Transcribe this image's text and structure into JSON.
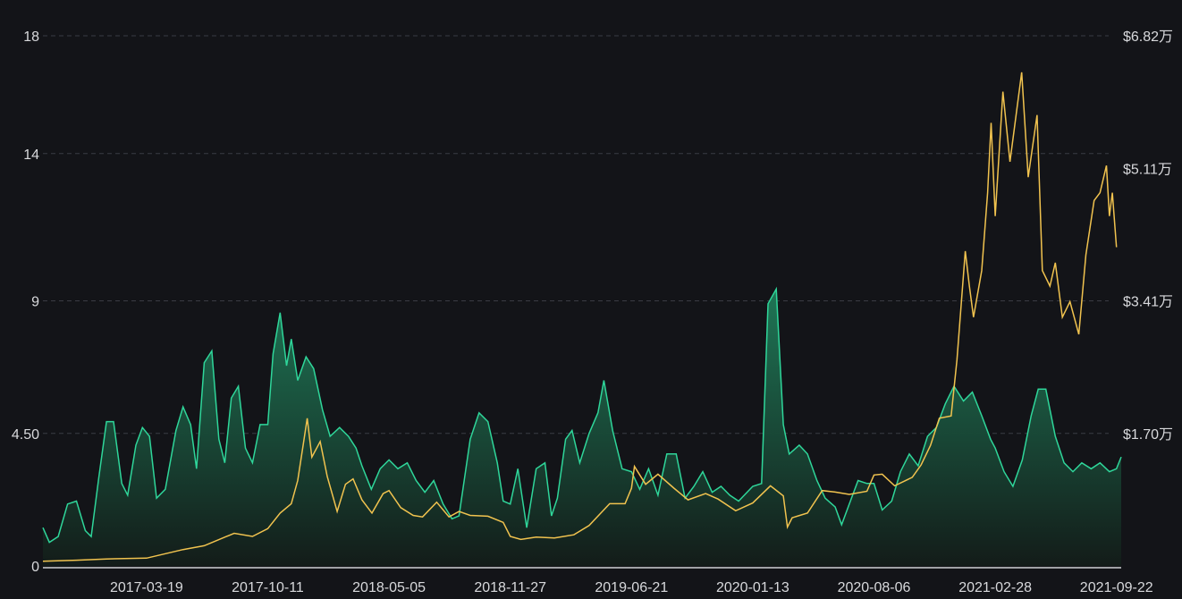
{
  "chart_data": {
    "type": "area",
    "title": "",
    "xlabel": "",
    "ylabel": "",
    "grid": true,
    "y_left": {
      "ticks": [
        0,
        4.5,
        9,
        14,
        18
      ],
      "tick_labels": [
        "0",
        "4.50",
        "9",
        "14",
        "18"
      ],
      "ylim": [
        0,
        18
      ]
    },
    "y_right": {
      "ticks": [
        17000,
        34100,
        51100,
        68200
      ],
      "tick_labels": [
        "$1.70万",
        "$3.41万",
        "$5.11万",
        "$6.82万"
      ],
      "ylim": [
        0,
        68200
      ]
    },
    "x_ticks": [
      "2017-03-19",
      "2017-10-11",
      "2018-05-05",
      "2018-11-27",
      "2019-06-21",
      "2020-01-13",
      "2020-08-06",
      "2021-02-28",
      "2021-09-22"
    ],
    "x_range": [
      "2016-09-24",
      "2021-09-30"
    ],
    "colors": {
      "area_line": "#2fd69a",
      "area_top": "#1f7a58",
      "area_bottom": "#131c19",
      "price_line": "#f1c34f",
      "background": "#131418"
    },
    "series": [
      {
        "axis": "left",
        "points": [
          [
            "2016-09-24",
            1.3
          ],
          [
            "2016-10-05",
            0.8
          ],
          [
            "2016-10-20",
            1.0
          ],
          [
            "2016-11-05",
            2.1
          ],
          [
            "2016-11-20",
            2.2
          ],
          [
            "2016-12-05",
            1.2
          ],
          [
            "2016-12-15",
            1.0
          ],
          [
            "2016-12-28",
            3.0
          ],
          [
            "2017-01-10",
            4.9
          ],
          [
            "2017-01-22",
            4.9
          ],
          [
            "2017-02-05",
            2.8
          ],
          [
            "2017-02-15",
            2.4
          ],
          [
            "2017-03-01",
            4.1
          ],
          [
            "2017-03-12",
            4.7
          ],
          [
            "2017-03-24",
            4.4
          ],
          [
            "2017-04-05",
            2.3
          ],
          [
            "2017-04-20",
            2.6
          ],
          [
            "2017-05-08",
            4.6
          ],
          [
            "2017-05-20",
            5.4
          ],
          [
            "2017-06-02",
            4.8
          ],
          [
            "2017-06-12",
            3.3
          ],
          [
            "2017-06-25",
            6.9
          ],
          [
            "2017-07-08",
            7.3
          ],
          [
            "2017-07-20",
            4.3
          ],
          [
            "2017-07-30",
            3.5
          ],
          [
            "2017-08-10",
            5.7
          ],
          [
            "2017-08-22",
            6.1
          ],
          [
            "2017-09-03",
            4.0
          ],
          [
            "2017-09-15",
            3.5
          ],
          [
            "2017-09-28",
            4.8
          ],
          [
            "2017-10-11",
            4.8
          ],
          [
            "2017-10-20",
            7.2
          ],
          [
            "2017-11-01",
            8.6
          ],
          [
            "2017-11-12",
            6.8
          ],
          [
            "2017-11-20",
            7.7
          ],
          [
            "2017-12-01",
            6.3
          ],
          [
            "2017-12-15",
            7.1
          ],
          [
            "2017-12-28",
            6.7
          ],
          [
            "2018-01-12",
            5.3
          ],
          [
            "2018-01-25",
            4.4
          ],
          [
            "2018-02-10",
            4.7
          ],
          [
            "2018-02-25",
            4.4
          ],
          [
            "2018-03-10",
            4.0
          ],
          [
            "2018-03-20",
            3.4
          ],
          [
            "2018-04-05",
            2.6
          ],
          [
            "2018-04-20",
            3.3
          ],
          [
            "2018-05-05",
            3.6
          ],
          [
            "2018-05-20",
            3.3
          ],
          [
            "2018-06-05",
            3.5
          ],
          [
            "2018-06-20",
            2.9
          ],
          [
            "2018-07-05",
            2.5
          ],
          [
            "2018-07-20",
            2.9
          ],
          [
            "2018-08-05",
            2.1
          ],
          [
            "2018-08-20",
            1.6
          ],
          [
            "2018-09-01",
            1.7
          ],
          [
            "2018-09-20",
            4.3
          ],
          [
            "2018-10-05",
            5.2
          ],
          [
            "2018-10-20",
            4.9
          ],
          [
            "2018-11-05",
            3.5
          ],
          [
            "2018-11-15",
            2.2
          ],
          [
            "2018-11-27",
            2.1
          ],
          [
            "2018-12-10",
            3.3
          ],
          [
            "2018-12-25",
            1.3
          ],
          [
            "2019-01-10",
            3.3
          ],
          [
            "2019-01-25",
            3.5
          ],
          [
            "2019-02-05",
            1.7
          ],
          [
            "2019-02-15",
            2.3
          ],
          [
            "2019-03-01",
            4.3
          ],
          [
            "2019-03-12",
            4.6
          ],
          [
            "2019-03-25",
            3.5
          ],
          [
            "2019-04-10",
            4.5
          ],
          [
            "2019-04-25",
            5.2
          ],
          [
            "2019-05-05",
            6.3
          ],
          [
            "2019-05-20",
            4.6
          ],
          [
            "2019-06-05",
            3.3
          ],
          [
            "2019-06-21",
            3.2
          ],
          [
            "2019-07-05",
            2.6
          ],
          [
            "2019-07-20",
            3.3
          ],
          [
            "2019-08-05",
            2.4
          ],
          [
            "2019-08-20",
            3.8
          ],
          [
            "2019-09-05",
            3.8
          ],
          [
            "2019-09-20",
            2.3
          ],
          [
            "2019-10-05",
            2.7
          ],
          [
            "2019-10-20",
            3.2
          ],
          [
            "2019-11-05",
            2.5
          ],
          [
            "2019-11-20",
            2.7
          ],
          [
            "2019-12-05",
            2.4
          ],
          [
            "2019-12-20",
            2.2
          ],
          [
            "2020-01-13",
            2.7
          ],
          [
            "2020-01-28",
            2.8
          ],
          [
            "2020-02-08",
            8.9
          ],
          [
            "2020-02-22",
            9.4
          ],
          [
            "2020-03-05",
            4.8
          ],
          [
            "2020-03-15",
            3.8
          ],
          [
            "2020-04-01",
            4.1
          ],
          [
            "2020-04-15",
            3.8
          ],
          [
            "2020-05-01",
            2.9
          ],
          [
            "2020-05-15",
            2.3
          ],
          [
            "2020-06-01",
            2.0
          ],
          [
            "2020-06-12",
            1.4
          ],
          [
            "2020-06-25",
            2.1
          ],
          [
            "2020-07-10",
            2.9
          ],
          [
            "2020-07-25",
            2.8
          ],
          [
            "2020-08-06",
            2.8
          ],
          [
            "2020-08-20",
            1.9
          ],
          [
            "2020-09-05",
            2.2
          ],
          [
            "2020-09-20",
            3.2
          ],
          [
            "2020-10-05",
            3.8
          ],
          [
            "2020-10-20",
            3.4
          ],
          [
            "2020-11-05",
            4.4
          ],
          [
            "2020-11-20",
            4.7
          ],
          [
            "2020-12-05",
            5.5
          ],
          [
            "2020-12-20",
            6.1
          ],
          [
            "2021-01-05",
            5.6
          ],
          [
            "2021-01-20",
            5.9
          ],
          [
            "2021-02-05",
            5.1
          ],
          [
            "2021-02-20",
            4.3
          ],
          [
            "2021-02-28",
            4.0
          ],
          [
            "2021-03-15",
            3.2
          ],
          [
            "2021-03-30",
            2.7
          ],
          [
            "2021-04-15",
            3.6
          ],
          [
            "2021-04-30",
            5.1
          ],
          [
            "2021-05-12",
            6.0
          ],
          [
            "2021-05-25",
            6.0
          ],
          [
            "2021-06-10",
            4.4
          ],
          [
            "2021-06-25",
            3.5
          ],
          [
            "2021-07-10",
            3.2
          ],
          [
            "2021-07-25",
            3.5
          ],
          [
            "2021-08-10",
            3.3
          ],
          [
            "2021-08-25",
            3.5
          ],
          [
            "2021-09-10",
            3.2
          ],
          [
            "2021-09-22",
            3.3
          ],
          [
            "2021-09-30",
            3.7
          ]
        ]
      },
      {
        "axis": "right",
        "points": [
          [
            "2016-09-24",
            600
          ],
          [
            "2016-11-20",
            740
          ],
          [
            "2017-01-10",
            900
          ],
          [
            "2017-03-19",
            1000
          ],
          [
            "2017-05-20",
            2100
          ],
          [
            "2017-06-25",
            2600
          ],
          [
            "2017-08-15",
            4200
          ],
          [
            "2017-09-15",
            3800
          ],
          [
            "2017-10-11",
            4800
          ],
          [
            "2017-11-01",
            6800
          ],
          [
            "2017-11-20",
            8000
          ],
          [
            "2017-12-01",
            11000
          ],
          [
            "2017-12-10",
            15500
          ],
          [
            "2017-12-17",
            19000
          ],
          [
            "2017-12-25",
            14000
          ],
          [
            "2018-01-08",
            16000
          ],
          [
            "2018-01-20",
            11500
          ],
          [
            "2018-02-06",
            7000
          ],
          [
            "2018-02-20",
            10500
          ],
          [
            "2018-03-05",
            11200
          ],
          [
            "2018-03-20",
            8500
          ],
          [
            "2018-04-06",
            6800
          ],
          [
            "2018-04-25",
            9300
          ],
          [
            "2018-05-05",
            9700
          ],
          [
            "2018-05-25",
            7500
          ],
          [
            "2018-06-15",
            6500
          ],
          [
            "2018-07-01",
            6300
          ],
          [
            "2018-07-25",
            8200
          ],
          [
            "2018-08-15",
            6300
          ],
          [
            "2018-09-01",
            7000
          ],
          [
            "2018-09-20",
            6500
          ],
          [
            "2018-10-20",
            6400
          ],
          [
            "2018-11-15",
            5600
          ],
          [
            "2018-11-27",
            3800
          ],
          [
            "2018-12-15",
            3400
          ],
          [
            "2019-01-10",
            3700
          ],
          [
            "2019-02-10",
            3600
          ],
          [
            "2019-03-15",
            4000
          ],
          [
            "2019-04-10",
            5200
          ],
          [
            "2019-05-15",
            8000
          ],
          [
            "2019-06-10",
            8000
          ],
          [
            "2019-06-21",
            10000
          ],
          [
            "2019-06-26",
            12800
          ],
          [
            "2019-07-15",
            10500
          ],
          [
            "2019-08-05",
            11800
          ],
          [
            "2019-09-01",
            10000
          ],
          [
            "2019-09-25",
            8500
          ],
          [
            "2019-10-25",
            9300
          ],
          [
            "2019-11-15",
            8600
          ],
          [
            "2019-12-15",
            7100
          ],
          [
            "2020-01-13",
            8100
          ],
          [
            "2020-02-12",
            10300
          ],
          [
            "2020-03-05",
            9000
          ],
          [
            "2020-03-12",
            5000
          ],
          [
            "2020-03-20",
            6200
          ],
          [
            "2020-04-15",
            6800
          ],
          [
            "2020-05-10",
            9700
          ],
          [
            "2020-06-01",
            9500
          ],
          [
            "2020-06-25",
            9200
          ],
          [
            "2020-07-25",
            9600
          ],
          [
            "2020-08-06",
            11700
          ],
          [
            "2020-08-20",
            11800
          ],
          [
            "2020-09-10",
            10300
          ],
          [
            "2020-10-10",
            11400
          ],
          [
            "2020-10-25",
            13000
          ],
          [
            "2020-11-10",
            15500
          ],
          [
            "2020-11-25",
            19000
          ],
          [
            "2020-12-15",
            19300
          ],
          [
            "2020-12-25",
            26500
          ],
          [
            "2021-01-08",
            40500
          ],
          [
            "2021-01-15",
            36000
          ],
          [
            "2021-01-22",
            32000
          ],
          [
            "2021-02-05",
            38000
          ],
          [
            "2021-02-15",
            48000
          ],
          [
            "2021-02-21",
            57000
          ],
          [
            "2021-02-28",
            45000
          ],
          [
            "2021-03-13",
            61000
          ],
          [
            "2021-03-25",
            52000
          ],
          [
            "2021-04-14",
            63500
          ],
          [
            "2021-04-25",
            50000
          ],
          [
            "2021-05-10",
            58000
          ],
          [
            "2021-05-19",
            38000
          ],
          [
            "2021-06-01",
            36000
          ],
          [
            "2021-06-10",
            39000
          ],
          [
            "2021-06-22",
            32000
          ],
          [
            "2021-07-05",
            34000
          ],
          [
            "2021-07-20",
            29800
          ],
          [
            "2021-08-01",
            40000
          ],
          [
            "2021-08-15",
            47000
          ],
          [
            "2021-08-25",
            48000
          ],
          [
            "2021-09-05",
            51500
          ],
          [
            "2021-09-10",
            45000
          ],
          [
            "2021-09-15",
            48000
          ],
          [
            "2021-09-22",
            41000
          ]
        ]
      }
    ]
  }
}
